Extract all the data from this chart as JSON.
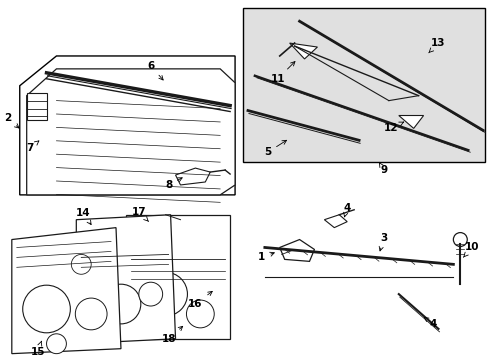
{
  "background_color": "#ffffff",
  "line_color": "#000000",
  "part_color": "#1a1a1a",
  "inset_bg": "#e0e0e0",
  "figsize": [
    4.89,
    3.6
  ],
  "dpi": 100,
  "label_fontsize": 7.5,
  "arrow_lw": 0.6
}
